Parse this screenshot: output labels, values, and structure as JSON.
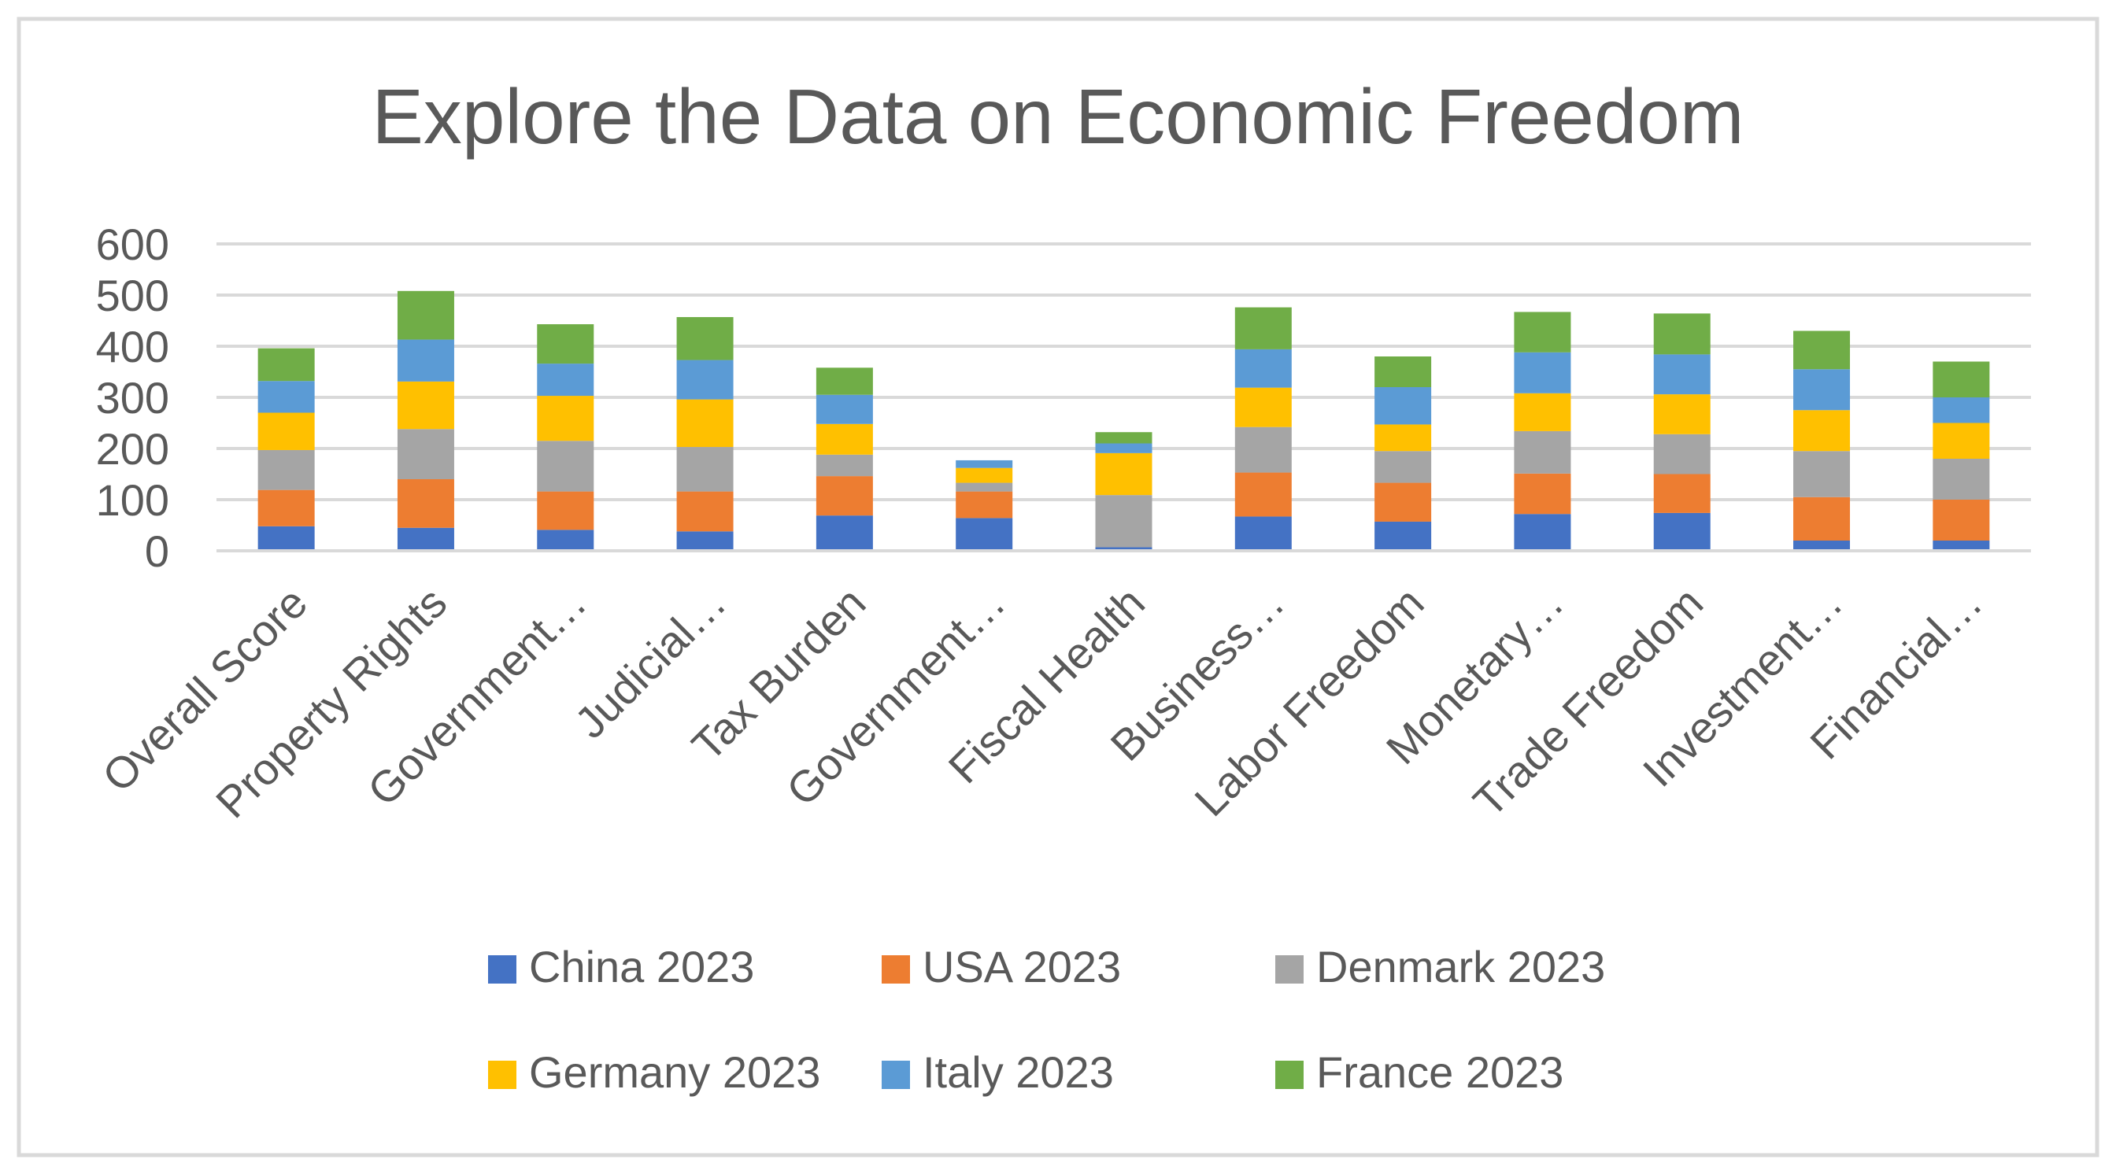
{
  "chart_data": {
    "type": "bar",
    "stacked": true,
    "title": "Explore the Data on Economic Freedom",
    "xlabel": "",
    "ylabel": "",
    "ylim": [
      0,
      600
    ],
    "yticks": [
      "0",
      "100",
      "200",
      "300",
      "400",
      "500",
      "600"
    ],
    "grid": true,
    "legend_position": "bottom",
    "categories": [
      "Overall Score",
      "Property Rights",
      "Government…",
      "Judicial…",
      "Tax Burden",
      "Government…",
      "Fiscal Health",
      "Business…",
      "Labor Freedom",
      "Monetary…",
      "Trade Freedom",
      "Investment…",
      "Financial…"
    ],
    "series": [
      {
        "name": "China 2023",
        "color": "#4472C4",
        "values": [
          48,
          45,
          41,
          38,
          69,
          64,
          7,
          67,
          57,
          72,
          74,
          20,
          20
        ]
      },
      {
        "name": "USA 2023",
        "color": "#ED7D31",
        "values": [
          71,
          95,
          75,
          78,
          77,
          52,
          0,
          86,
          76,
          79,
          76,
          85,
          80
        ]
      },
      {
        "name": "Denmark 2023",
        "color": "#A5A5A5",
        "values": [
          78,
          98,
          99,
          87,
          42,
          17,
          102,
          89,
          62,
          83,
          78,
          90,
          80
        ]
      },
      {
        "name": "Germany 2023",
        "color": "#FFC000",
        "values": [
          73,
          93,
          88,
          93,
          60,
          29,
          82,
          77,
          52,
          74,
          78,
          80,
          70
        ]
      },
      {
        "name": "Italy 2023",
        "color": "#5B9BD5",
        "values": [
          62,
          82,
          63,
          77,
          57,
          15,
          19,
          75,
          73,
          80,
          78,
          80,
          50
        ]
      },
      {
        "name": "France 2023",
        "color": "#70AD47",
        "values": [
          64,
          95,
          77,
          84,
          53,
          0,
          22,
          82,
          60,
          79,
          80,
          75,
          70
        ]
      }
    ]
  }
}
